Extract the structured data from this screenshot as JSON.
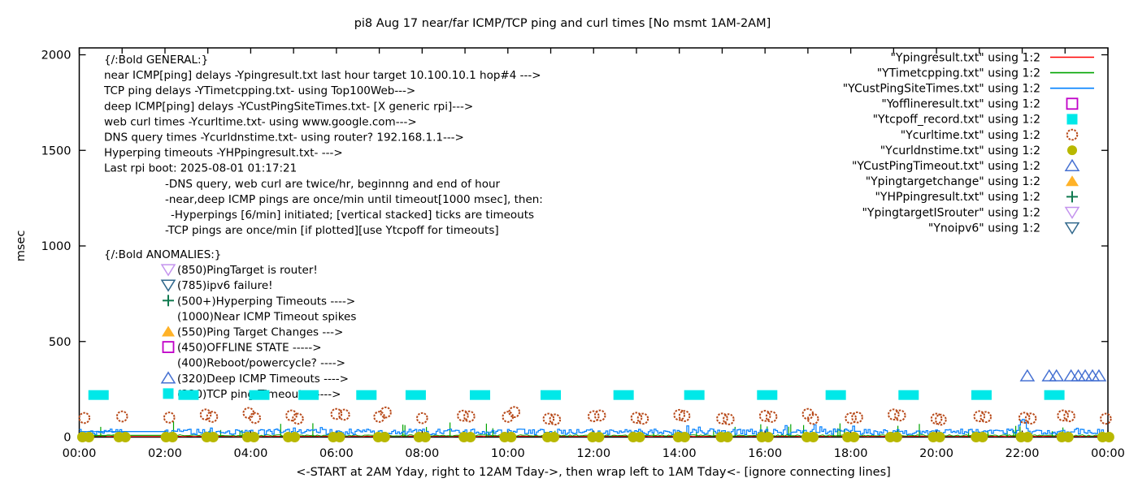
{
  "title": "pi8 Aug 17  near/far ICMP/TCP ping and curl times [No msmt 1AM-2AM]",
  "axes": {
    "ylabel": "msec",
    "xlabel": "<-START at 2AM Yday, right to 12AM Tday->, then wrap left to 1AM Tday<- [ignore connecting lines]",
    "y_ticks": [
      0,
      500,
      1000,
      1500,
      2000
    ],
    "x_ticks": [
      "00:00",
      "02:00",
      "04:00",
      "06:00",
      "08:00",
      "10:00",
      "12:00",
      "14:00",
      "16:00",
      "18:00",
      "20:00",
      "22:00",
      "00:00"
    ],
    "x_tick_hours": [
      0,
      2,
      4,
      6,
      8,
      10,
      12,
      14,
      16,
      18,
      20,
      22,
      24
    ],
    "ylim": [
      0,
      2000
    ],
    "xlim_hours": [
      0,
      24
    ]
  },
  "legend": [
    {
      "label": "\"Ypingresult.txt\" using 1:2",
      "marker": "line",
      "color": "#ff0000"
    },
    {
      "label": "\"YTimetcpping.txt\" using 1:2",
      "marker": "line",
      "color": "#00a400"
    },
    {
      "label": "\"YCustPingSiteTimes.txt\" using 1:2",
      "marker": "line",
      "color": "#0080ff"
    },
    {
      "label": "\"Yofflineresult.txt\" using 1:2",
      "marker": "square-open",
      "color": "#c000c8"
    },
    {
      "label": "\"Ytcpoff_record.txt\" using 1:2",
      "marker": "square-filled",
      "color": "#00e8e8"
    },
    {
      "label": "\"Ycurltime.txt\" using 1:2",
      "marker": "circle-open",
      "color": "#b84a1a"
    },
    {
      "label": "\"Ycurldnstime.txt\" using 1:2",
      "marker": "circle-filled",
      "color": "#b8b800"
    },
    {
      "label": "\"YCustPingTimeout.txt\" using 1:2",
      "marker": "triangle-open",
      "color": "#4671d2"
    },
    {
      "label": "\"Ypingtargetchange\" using 1:2",
      "marker": "triangle-filled",
      "color": "#ffb228"
    },
    {
      "label": "\"YHPpingresult.txt\" using 1:2",
      "marker": "plus",
      "color": "#107a50"
    },
    {
      "label": "\"YpingtargetISrouter\" using 1:2",
      "marker": "tridown-open",
      "color": "#c493ee"
    },
    {
      "label": "\"Ynoipv6\" using 1:2",
      "marker": "tridown-open",
      "color": "#30688c"
    }
  ],
  "general_notes": {
    "header": "{/:Bold GENERAL:}",
    "lines": [
      {
        "indent": 0,
        "text": "near ICMP[ping] delays -Ypingresult.txt last hour target 10.100.10.1 hop#4 --->"
      },
      {
        "indent": 0,
        "text": "TCP ping delays -YTimetcpping.txt- using Top100Web--->"
      },
      {
        "indent": 0,
        "text": "deep ICMP[ping] delays -YCustPingSiteTimes.txt- [X generic rpi]--->"
      },
      {
        "indent": 0,
        "text": "web curl times -Ycurltime.txt- using www.google.com--->"
      },
      {
        "indent": 0,
        "text": "DNS query times -Ycurldnstime.txt- using router? 192.168.1.1--->"
      },
      {
        "indent": 0,
        "text": "Hyperping timeouts -YHPpingresult.txt- --->"
      },
      {
        "indent": 0,
        "text": "Last rpi boot: 2025-08-01 01:17:21"
      },
      {
        "indent": 1,
        "text": "-DNS query, web curl are twice/hr, beginnng and end of hour"
      },
      {
        "indent": 1,
        "text": "-near,deep ICMP pings are once/min until timeout[1000 msec], then:"
      },
      {
        "indent": 2,
        "text": "-Hyperpings [6/min] initiated; [vertical stacked] ticks are timeouts"
      },
      {
        "indent": 1,
        "text": "-TCP pings are once/min [if plotted][use Ytcpoff for timeouts]"
      }
    ]
  },
  "anomalies": {
    "header": "{/:Bold ANOMALIES:}",
    "items": [
      {
        "marker": "tridown-open",
        "color": "#c493ee",
        "label": "(850)PingTarget is router!"
      },
      {
        "marker": "tridown-open",
        "color": "#30688c",
        "label": "(785)ipv6 failure!"
      },
      {
        "marker": "plus",
        "color": "#107a50",
        "label": "(500+)Hyperping Timeouts ---->"
      },
      {
        "marker": "none",
        "color": "",
        "label": "(1000)Near ICMP Timeout spikes"
      },
      {
        "marker": "triangle-filled",
        "color": "#ffb228",
        "label": "(550)Ping Target Changes --->"
      },
      {
        "marker": "square-open",
        "color": "#c000c8",
        "label": "(450)OFFLINE STATE ----->"
      },
      {
        "marker": "none",
        "color": "",
        "label": "(400)Reboot/powercycle? ---->"
      },
      {
        "marker": "triangle-open",
        "color": "#4671d2",
        "label": "(320)Deep ICMP Timeouts ---->"
      },
      {
        "marker": "square-filled",
        "color": "#00e8e8",
        "label": "(220)TCP ping Timeouts ----->"
      }
    ]
  },
  "chart_data": {
    "type": "scatter",
    "title": "pi8 Aug 17  near/far ICMP/TCP ping and curl times [No msmt 1AM-2AM]",
    "xlabel": "<-START at 2AM Yday, right to 12AM Tday->, then wrap left to 1AM Tday<- [ignore connecting lines]",
    "ylabel": "msec",
    "ylim": [
      0,
      2000
    ],
    "x_hours_range": [
      0,
      24
    ],
    "no_measurement_gap_hours": [
      1,
      2
    ],
    "line_series": [
      {
        "name": "Ypingresult.txt",
        "style": "line",
        "color": "#ff0000",
        "baseline_ms": 3,
        "noise_ms": 3,
        "gap_flat_ms": 3
      },
      {
        "name": "YTimetcpping.txt",
        "style": "line",
        "color": "#00a400",
        "baseline_ms": 5,
        "noise_ms": 7,
        "spike_ms_min": 25,
        "spike_ms_max": 85,
        "spike_prob": 0.1,
        "gap_flat_ms": 9
      },
      {
        "name": "YCustPingSiteTimes.txt",
        "style": "line",
        "color": "#0080ff",
        "band_ms": [
          13,
          42
        ],
        "spike_ms_max": 70,
        "spike_prob": 0.05,
        "gap_flat_ms": 29,
        "bump": {
          "hour": 22.0,
          "peak_ms": 58,
          "width_h": 0.09
        }
      }
    ],
    "marker_series": [
      {
        "name": "Ytcpoff_record.txt",
        "desc": "TCP ping timeouts",
        "style": "square-filled",
        "color": "#00e8e8",
        "value_ms": 220,
        "hours": [
          0.45,
          2.55,
          4.2,
          5.35,
          6.7,
          7.85,
          9.35,
          11.0,
          12.7,
          14.35,
          16.05,
          17.65,
          19.35,
          21.05,
          22.75
        ]
      },
      {
        "name": "Ycurltime.txt",
        "desc": "web curl times",
        "style": "circle-open",
        "color": "#b84a1a",
        "points": [
          {
            "h": 0.12,
            "ms": 100
          },
          {
            "h": 1.0,
            "ms": 108
          },
          {
            "h": 2.1,
            "ms": 102
          },
          {
            "h": 2.95,
            "ms": 118
          },
          {
            "h": 3.1,
            "ms": 106
          },
          {
            "h": 3.95,
            "ms": 126
          },
          {
            "h": 4.1,
            "ms": 100
          },
          {
            "h": 4.95,
            "ms": 113
          },
          {
            "h": 5.1,
            "ms": 96
          },
          {
            "h": 6.0,
            "ms": 121
          },
          {
            "h": 6.18,
            "ms": 117
          },
          {
            "h": 7.0,
            "ms": 106
          },
          {
            "h": 7.15,
            "ms": 129
          },
          {
            "h": 8.0,
            "ms": 99
          },
          {
            "h": 8.95,
            "ms": 112
          },
          {
            "h": 9.1,
            "ms": 108
          },
          {
            "h": 10.0,
            "ms": 106
          },
          {
            "h": 10.15,
            "ms": 131
          },
          {
            "h": 10.95,
            "ms": 96
          },
          {
            "h": 11.1,
            "ms": 92
          },
          {
            "h": 12.0,
            "ms": 109
          },
          {
            "h": 12.15,
            "ms": 113
          },
          {
            "h": 13.0,
            "ms": 101
          },
          {
            "h": 13.15,
            "ms": 96
          },
          {
            "h": 14.0,
            "ms": 116
          },
          {
            "h": 14.12,
            "ms": 110
          },
          {
            "h": 15.0,
            "ms": 97
          },
          {
            "h": 15.15,
            "ms": 93
          },
          {
            "h": 16.0,
            "ms": 111
          },
          {
            "h": 16.15,
            "ms": 106
          },
          {
            "h": 17.0,
            "ms": 121
          },
          {
            "h": 17.12,
            "ms": 95
          },
          {
            "h": 18.0,
            "ms": 99
          },
          {
            "h": 18.15,
            "ms": 103
          },
          {
            "h": 19.0,
            "ms": 118
          },
          {
            "h": 19.15,
            "ms": 113
          },
          {
            "h": 20.0,
            "ms": 96
          },
          {
            "h": 20.1,
            "ms": 91
          },
          {
            "h": 21.0,
            "ms": 109
          },
          {
            "h": 21.15,
            "ms": 105
          },
          {
            "h": 22.05,
            "ms": 101
          },
          {
            "h": 22.2,
            "ms": 97
          },
          {
            "h": 22.95,
            "ms": 113
          },
          {
            "h": 23.1,
            "ms": 109
          },
          {
            "h": 23.95,
            "ms": 96
          }
        ]
      },
      {
        "name": "Ycurldnstime.txt",
        "desc": "DNS query times",
        "style": "circle-filled",
        "color": "#b8b800",
        "value_ms": 0,
        "hours": [
          0.15,
          1.0,
          2.1,
          3.05,
          4.0,
          4.95,
          6.0,
          7.05,
          8.0,
          9.05,
          10.0,
          11.0,
          12.05,
          13.0,
          14.05,
          15.05,
          16.0,
          17.05,
          18.0,
          19.0,
          20.0,
          21.0,
          22.05,
          23.0,
          23.95
        ]
      },
      {
        "name": "YCustPingTimeout.txt",
        "desc": "deep ICMP timeouts",
        "style": "triangle-open",
        "color": "#4671d2",
        "value_ms": 320,
        "hours": [
          22.12,
          22.63,
          22.8,
          23.14,
          23.31,
          23.47,
          23.64,
          23.79
        ]
      },
      {
        "name": "Yofflineresult.txt",
        "style": "square-open",
        "color": "#c000c8",
        "value_ms": 450,
        "hours": []
      },
      {
        "name": "Ypingtargetchange",
        "style": "triangle-filled",
        "color": "#ffb228",
        "value_ms": 550,
        "hours": []
      },
      {
        "name": "YHPpingresult.txt",
        "style": "plus",
        "color": "#107a50",
        "value_ms": 500,
        "hours": []
      },
      {
        "name": "YpingtargetISrouter",
        "style": "tridown-open",
        "color": "#c493ee",
        "value_ms": 850,
        "hours": []
      },
      {
        "name": "Ynoipv6",
        "style": "tridown-open",
        "color": "#30688c",
        "value_ms": 785,
        "hours": []
      }
    ]
  }
}
